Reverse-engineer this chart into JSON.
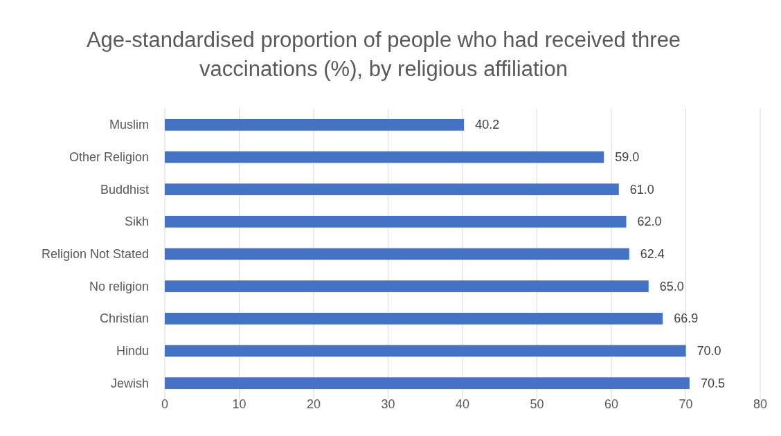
{
  "chart_data": {
    "type": "bar",
    "orientation": "horizontal",
    "title": "Age-standardised proportion of people who had received three vaccinations (%), by religious affiliation",
    "categories": [
      "Muslim",
      "Other Religion",
      "Buddhist",
      "Sikh",
      "Religion Not Stated",
      "No religion",
      "Christian",
      "Hindu",
      "Jewish"
    ],
    "values": [
      40.2,
      59.0,
      61.0,
      62.0,
      62.4,
      65.0,
      66.9,
      70.0,
      70.5
    ],
    "value_labels": [
      "40.2",
      "59.0",
      "61.0",
      "62.0",
      "62.4",
      "65.0",
      "66.9",
      "70.0",
      "70.5"
    ],
    "color": "#4472c4",
    "xlim": [
      0,
      80
    ],
    "xticks": [
      0,
      10,
      20,
      30,
      40,
      50,
      60,
      70,
      80
    ],
    "grid": "x"
  }
}
